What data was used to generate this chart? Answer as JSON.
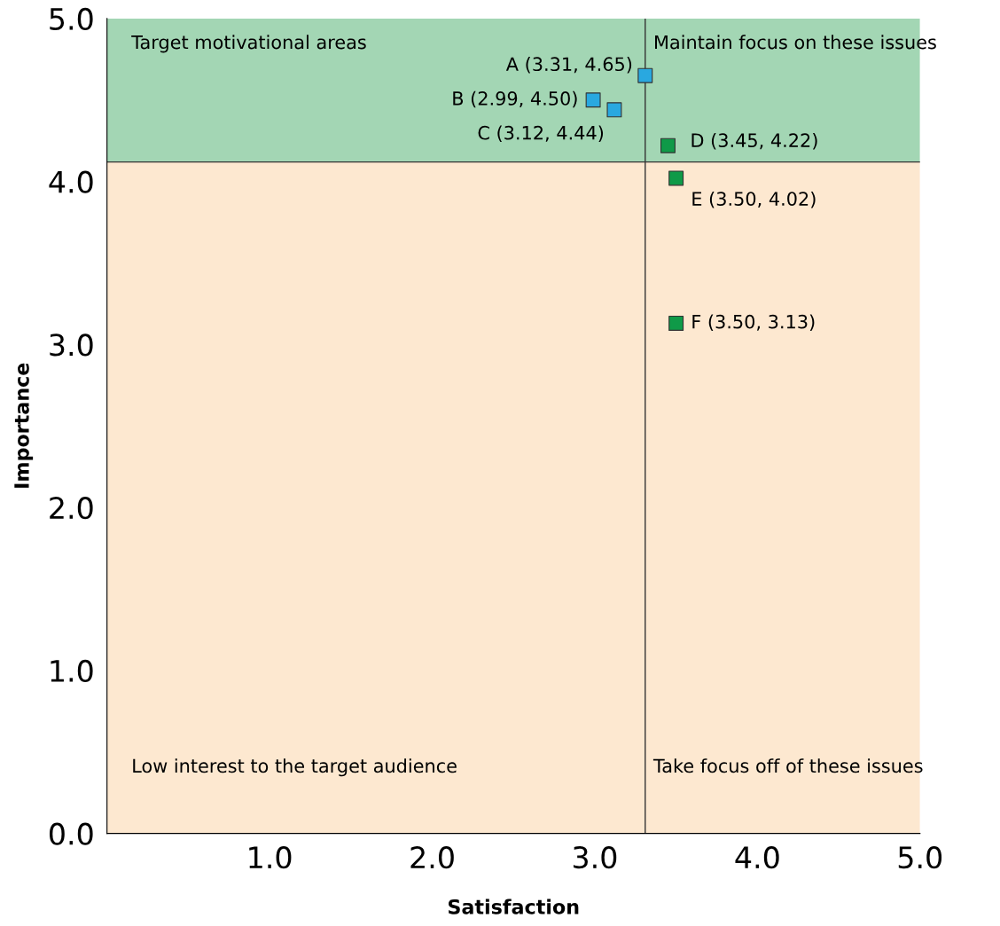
{
  "chart_data": {
    "type": "scatter",
    "xlabel": "Satisfaction",
    "ylabel": "Importance",
    "xlim": [
      0,
      5
    ],
    "ylim": [
      0,
      5
    ],
    "xticks": [
      {
        "value": 1,
        "label": "1.0"
      },
      {
        "value": 2,
        "label": "2.0"
      },
      {
        "value": 3,
        "label": "3.0"
      },
      {
        "value": 4,
        "label": "4.0"
      },
      {
        "value": 5,
        "label": "5.0"
      }
    ],
    "yticks": [
      {
        "value": 0,
        "label": "0.0"
      },
      {
        "value": 1,
        "label": "1.0"
      },
      {
        "value": 2,
        "label": "2.0"
      },
      {
        "value": 3,
        "label": "3.0"
      },
      {
        "value": 4,
        "label": "4.0"
      },
      {
        "value": 5,
        "label": "5.0"
      }
    ],
    "series": [
      {
        "color": "#29a8e0",
        "x": [
          3.31,
          2.99,
          3.12
        ],
        "values": [
          4.65,
          4.5,
          4.44
        ],
        "value_labels": [
          "A (3.31, 4.65)",
          "B (2.99, 4.50)",
          "C (3.12, 4.44)"
        ]
      },
      {
        "color": "#0f9a48",
        "x": [
          3.45,
          3.5,
          3.5
        ],
        "values": [
          4.22,
          4.02,
          3.13
        ],
        "value_labels": [
          "D (3.45, 4.22)",
          "E (3.50, 4.02)",
          "F (3.50, 3.13)"
        ]
      }
    ],
    "marker": "square",
    "grid": false,
    "ref_lines": [
      {
        "axis": "x",
        "value": 3.31
      },
      {
        "axis": "y",
        "value": 4.12
      }
    ],
    "bands": [
      {
        "axis": "y",
        "from": 4.12,
        "to": 5,
        "color": "#a3d6b4"
      },
      {
        "axis": "y",
        "from": 0,
        "to": 4.12,
        "color": "#fde8d0"
      }
    ],
    "annotations": [
      "Target motivational areas",
      "Maintain focus on these issues",
      "Low interest to the target audience",
      "Take focus off of these issues"
    ]
  }
}
